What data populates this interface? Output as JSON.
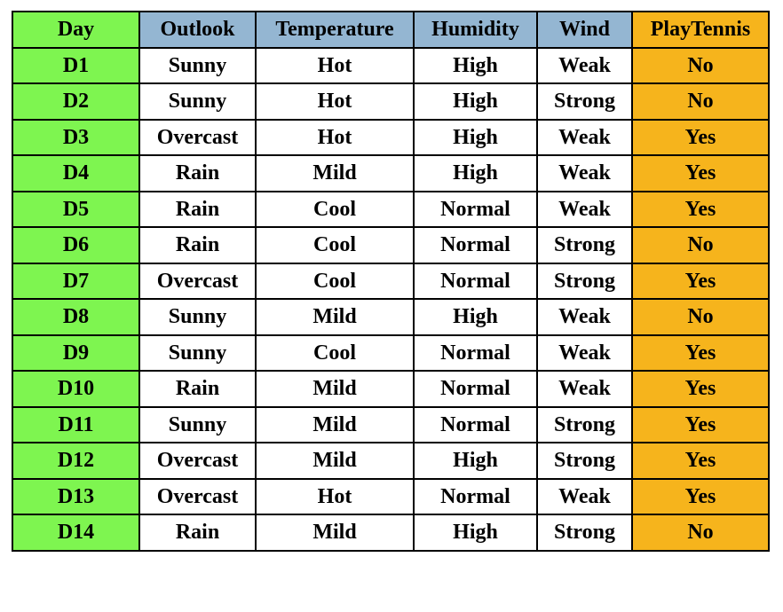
{
  "columns": [
    "Day",
    "Outlook",
    "Temperature",
    "Humidity",
    "Wind",
    "PlayTennis"
  ],
  "rows": [
    [
      "D1",
      "Sunny",
      "Hot",
      "High",
      "Weak",
      "No"
    ],
    [
      "D2",
      "Sunny",
      "Hot",
      "High",
      "Strong",
      "No"
    ],
    [
      "D3",
      "Overcast",
      "Hot",
      "High",
      "Weak",
      "Yes"
    ],
    [
      "D4",
      "Rain",
      "Mild",
      "High",
      "Weak",
      "Yes"
    ],
    [
      "D5",
      "Rain",
      "Cool",
      "Normal",
      "Weak",
      "Yes"
    ],
    [
      "D6",
      "Rain",
      "Cool",
      "Normal",
      "Strong",
      "No"
    ],
    [
      "D7",
      "Overcast",
      "Cool",
      "Normal",
      "Strong",
      "Yes"
    ],
    [
      "D8",
      "Sunny",
      "Mild",
      "High",
      "Weak",
      "No"
    ],
    [
      "D9",
      "Sunny",
      "Cool",
      "Normal",
      "Weak",
      "Yes"
    ],
    [
      "D10",
      "Rain",
      "Mild",
      "Normal",
      "Weak",
      "Yes"
    ],
    [
      "D11",
      "Sunny",
      "Mild",
      "Normal",
      "Strong",
      "Yes"
    ],
    [
      "D12",
      "Overcast",
      "Mild",
      "High",
      "Strong",
      "Yes"
    ],
    [
      "D13",
      "Overcast",
      "Hot",
      "Normal",
      "Weak",
      "Yes"
    ],
    [
      "D14",
      "Rain",
      "Mild",
      "High",
      "Strong",
      "No"
    ]
  ],
  "colors": {
    "day_column": "#7ef550",
    "attribute_header": "#94b6d2",
    "label_column": "#f6b41c",
    "cell": "#ffffff",
    "border": "#000000"
  }
}
